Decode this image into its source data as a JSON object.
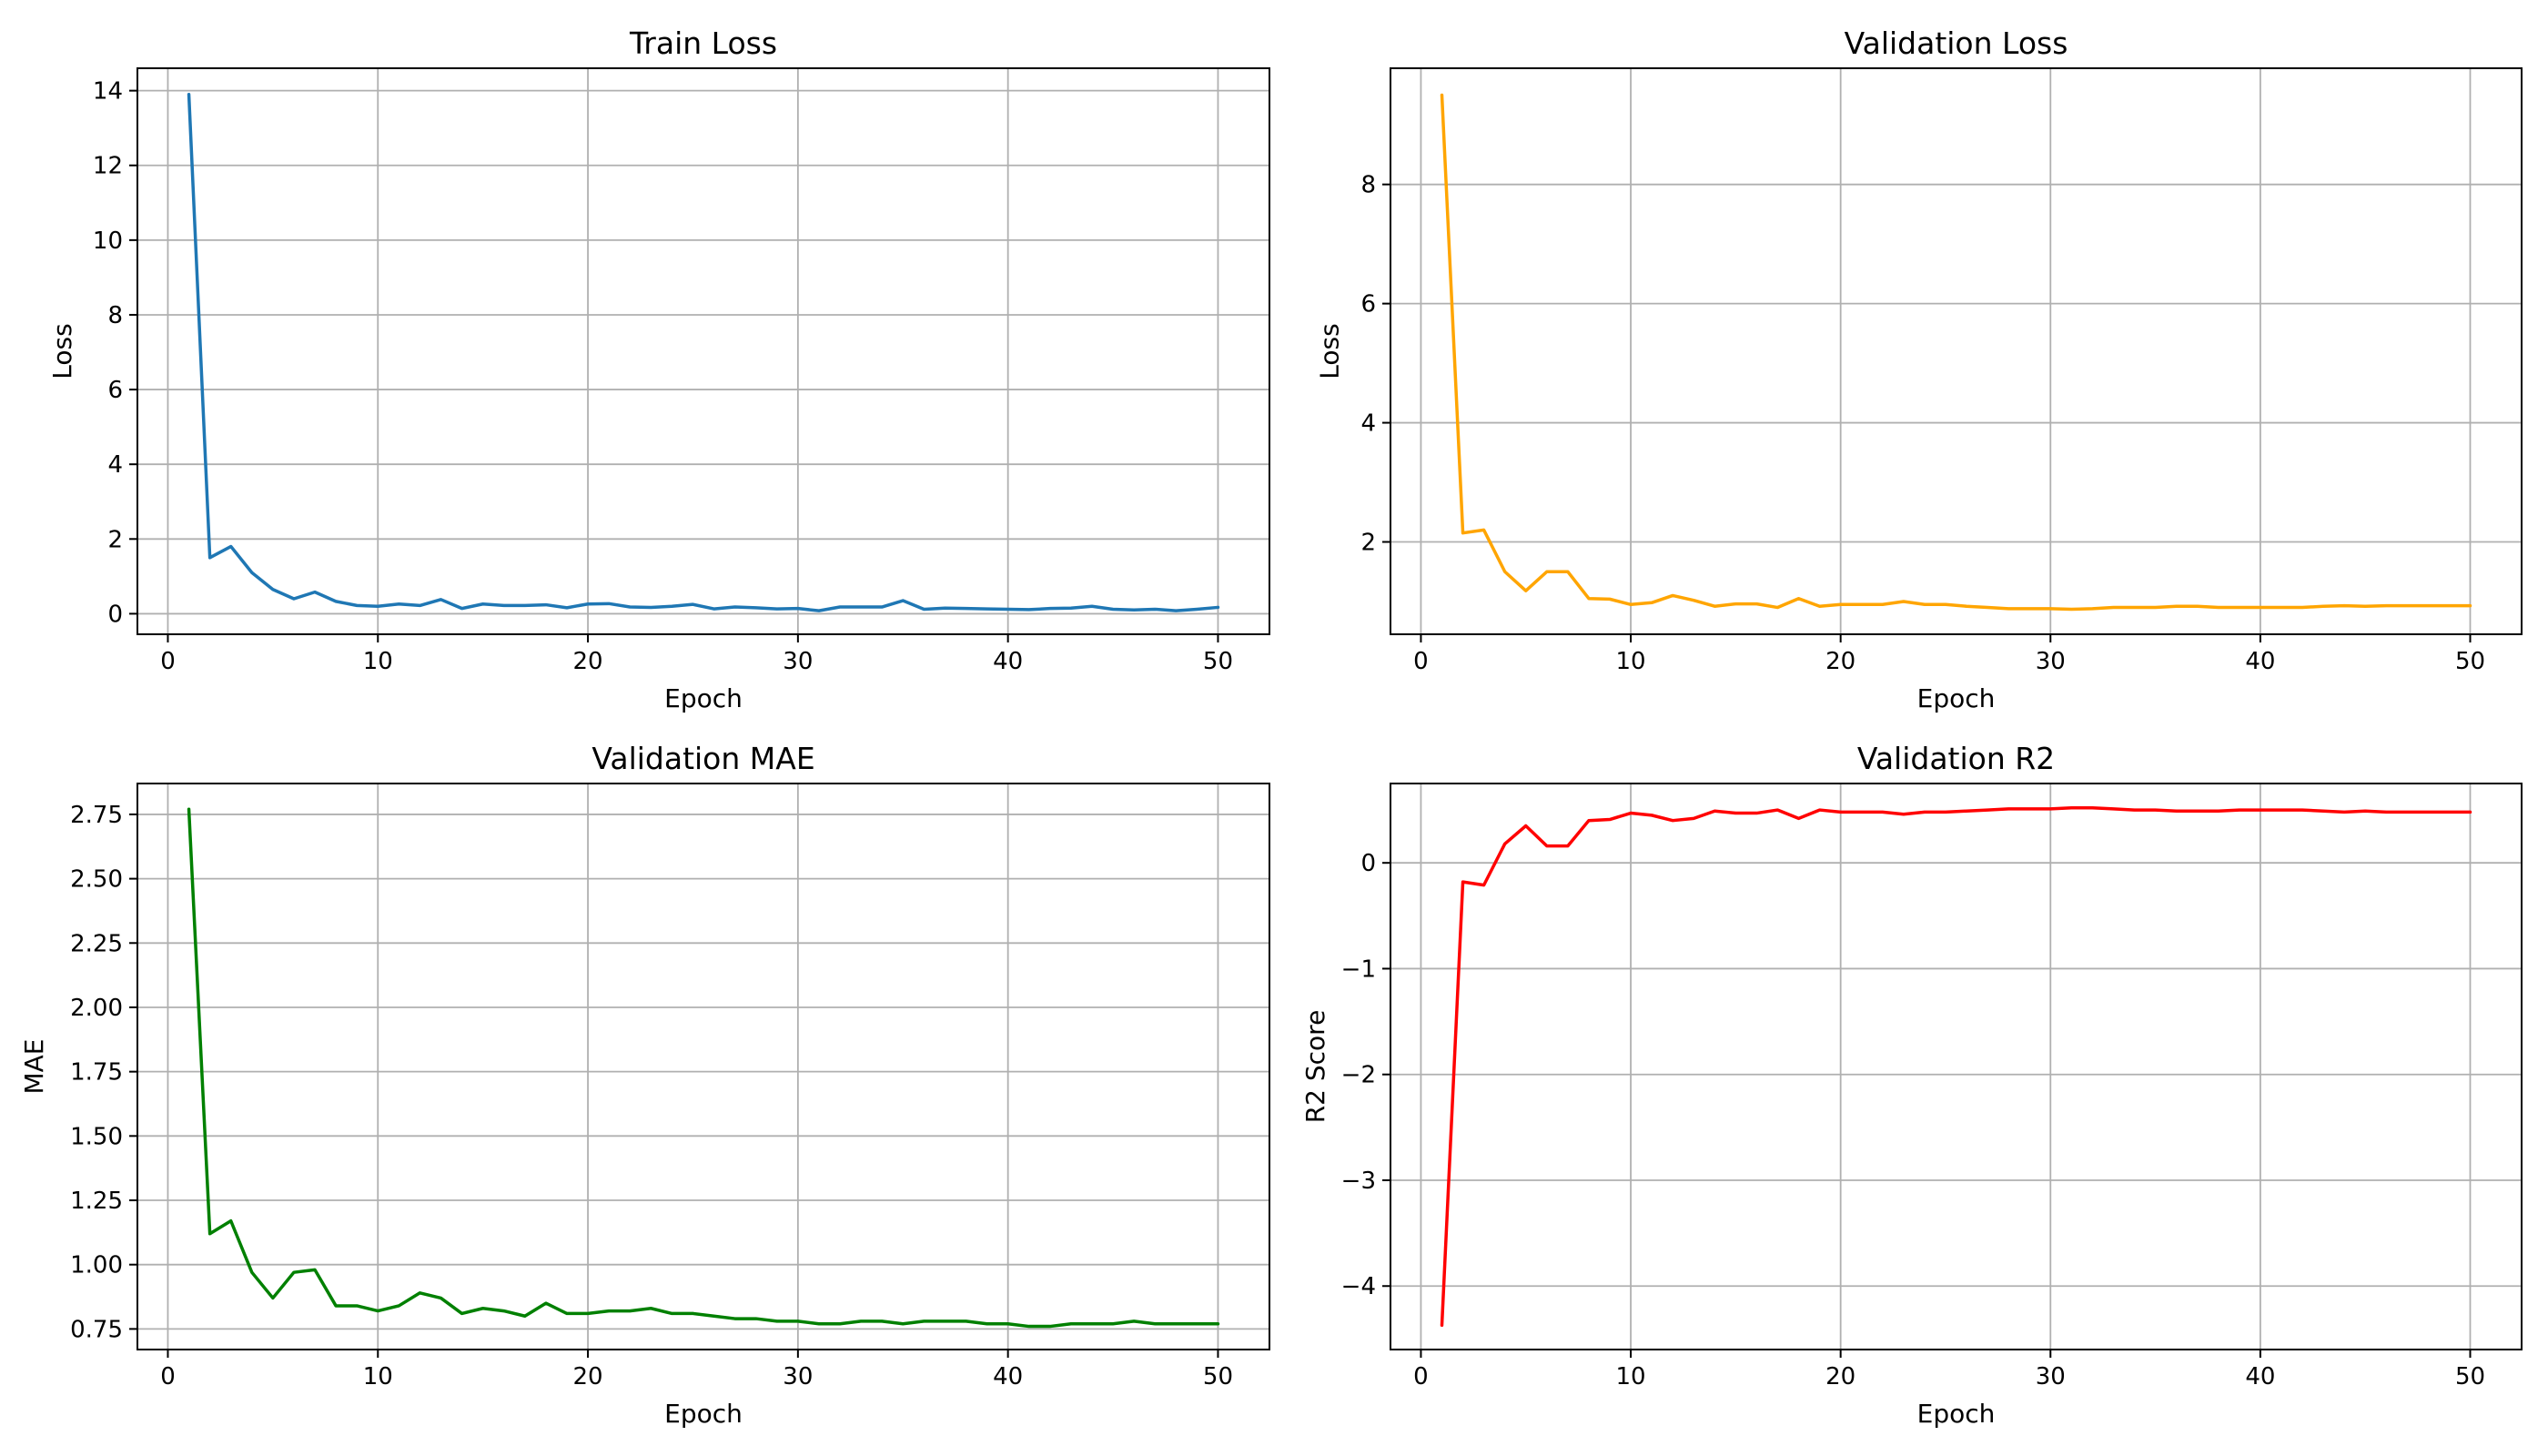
{
  "chart_data": [
    {
      "type": "line",
      "title": "Train Loss",
      "xlabel": "Epoch",
      "ylabel": "Loss",
      "xlim": [
        -1.45,
        52.45
      ],
      "ylim": [
        -0.55,
        14.6
      ],
      "xticks": [
        0,
        10,
        20,
        30,
        40,
        50
      ],
      "yticks": [
        0,
        2,
        4,
        6,
        8,
        10,
        12,
        14
      ],
      "ytick_decimals": 0,
      "grid": true,
      "color": "#1f77b4",
      "series": [
        {
          "x": [
            1,
            2,
            3,
            4,
            5,
            6,
            7,
            8,
            9,
            10,
            11,
            12,
            13,
            14,
            15,
            16,
            17,
            18,
            19,
            20,
            21,
            22,
            23,
            24,
            25,
            26,
            27,
            28,
            29,
            30,
            31,
            32,
            33,
            34,
            35,
            36,
            37,
            38,
            39,
            40,
            41,
            42,
            43,
            44,
            45,
            46,
            47,
            48,
            49,
            50
          ],
          "values": [
            13.9,
            1.5,
            1.8,
            1.1,
            0.65,
            0.4,
            0.58,
            0.33,
            0.22,
            0.2,
            0.26,
            0.22,
            0.38,
            0.14,
            0.26,
            0.22,
            0.22,
            0.24,
            0.16,
            0.26,
            0.27,
            0.18,
            0.17,
            0.2,
            0.25,
            0.13,
            0.18,
            0.16,
            0.13,
            0.14,
            0.08,
            0.18,
            0.18,
            0.18,
            0.35,
            0.12,
            0.15,
            0.14,
            0.13,
            0.12,
            0.11,
            0.14,
            0.15,
            0.2,
            0.12,
            0.1,
            0.12,
            0.08,
            0.12,
            0.17
          ]
        }
      ]
    },
    {
      "type": "line",
      "title": "Validation Loss",
      "xlabel": "Epoch",
      "ylabel": "Loss",
      "xlim": [
        -1.45,
        52.45
      ],
      "ylim": [
        0.45,
        9.95
      ],
      "xticks": [
        0,
        10,
        20,
        30,
        40,
        50
      ],
      "yticks": [
        2,
        4,
        6,
        8
      ],
      "ytick_decimals": 0,
      "grid": true,
      "color": "#ffa500",
      "series": [
        {
          "x": [
            1,
            2,
            3,
            4,
            5,
            6,
            7,
            8,
            9,
            10,
            11,
            12,
            13,
            14,
            15,
            16,
            17,
            18,
            19,
            20,
            21,
            22,
            23,
            24,
            25,
            26,
            27,
            28,
            29,
            30,
            31,
            32,
            33,
            34,
            35,
            36,
            37,
            38,
            39,
            40,
            41,
            42,
            43,
            44,
            45,
            46,
            47,
            48,
            49,
            50
          ],
          "values": [
            9.5,
            2.15,
            2.2,
            1.5,
            1.18,
            1.5,
            1.5,
            1.05,
            1.04,
            0.95,
            0.98,
            1.1,
            1.02,
            0.92,
            0.96,
            0.96,
            0.9,
            1.05,
            0.92,
            0.95,
            0.95,
            0.95,
            1.0,
            0.95,
            0.95,
            0.92,
            0.9,
            0.88,
            0.88,
            0.88,
            0.87,
            0.88,
            0.9,
            0.9,
            0.9,
            0.92,
            0.92,
            0.9,
            0.9,
            0.9,
            0.9,
            0.9,
            0.92,
            0.93,
            0.92,
            0.93,
            0.93,
            0.93,
            0.93,
            0.93
          ]
        }
      ]
    },
    {
      "type": "line",
      "title": "Validation MAE",
      "xlabel": "Epoch",
      "ylabel": "MAE",
      "xlim": [
        -1.45,
        52.45
      ],
      "ylim": [
        0.67,
        2.87
      ],
      "xticks": [
        0,
        10,
        20,
        30,
        40,
        50
      ],
      "yticks": [
        0.75,
        1.0,
        1.25,
        1.5,
        1.75,
        2.0,
        2.25,
        2.5,
        2.75
      ],
      "ytick_decimals": 2,
      "grid": true,
      "color": "#008000",
      "series": [
        {
          "x": [
            1,
            2,
            3,
            4,
            5,
            6,
            7,
            8,
            9,
            10,
            11,
            12,
            13,
            14,
            15,
            16,
            17,
            18,
            19,
            20,
            21,
            22,
            23,
            24,
            25,
            26,
            27,
            28,
            29,
            30,
            31,
            32,
            33,
            34,
            35,
            36,
            37,
            38,
            39,
            40,
            41,
            42,
            43,
            44,
            45,
            46,
            47,
            48,
            49,
            50
          ],
          "values": [
            2.77,
            1.12,
            1.17,
            0.97,
            0.87,
            0.97,
            0.98,
            0.84,
            0.84,
            0.82,
            0.84,
            0.89,
            0.87,
            0.81,
            0.83,
            0.82,
            0.8,
            0.85,
            0.81,
            0.81,
            0.82,
            0.82,
            0.83,
            0.81,
            0.81,
            0.8,
            0.79,
            0.79,
            0.78,
            0.78,
            0.77,
            0.77,
            0.78,
            0.78,
            0.77,
            0.78,
            0.78,
            0.78,
            0.77,
            0.77,
            0.76,
            0.76,
            0.77,
            0.77,
            0.77,
            0.78,
            0.77,
            0.77,
            0.77,
            0.77
          ]
        }
      ]
    },
    {
      "type": "line",
      "title": "Validation R2",
      "xlabel": "Epoch",
      "ylabel": "R2 Score",
      "xlim": [
        -1.45,
        52.45
      ],
      "ylim": [
        -4.6,
        0.75
      ],
      "xticks": [
        0,
        10,
        20,
        30,
        40,
        50
      ],
      "yticks": [
        -4,
        -3,
        -2,
        -1,
        0
      ],
      "ytick_decimals": 0,
      "grid": true,
      "color": "#ff0000",
      "series": [
        {
          "x": [
            1,
            2,
            3,
            4,
            5,
            6,
            7,
            8,
            9,
            10,
            11,
            12,
            13,
            14,
            15,
            16,
            17,
            18,
            19,
            20,
            21,
            22,
            23,
            24,
            25,
            26,
            27,
            28,
            29,
            30,
            31,
            32,
            33,
            34,
            35,
            36,
            37,
            38,
            39,
            40,
            41,
            42,
            43,
            44,
            45,
            46,
            47,
            48,
            49,
            50
          ],
          "values": [
            -4.37,
            -0.18,
            -0.21,
            0.18,
            0.35,
            0.16,
            0.16,
            0.4,
            0.41,
            0.47,
            0.45,
            0.4,
            0.42,
            0.49,
            0.47,
            0.47,
            0.5,
            0.42,
            0.5,
            0.48,
            0.48,
            0.48,
            0.46,
            0.48,
            0.48,
            0.49,
            0.5,
            0.51,
            0.51,
            0.51,
            0.52,
            0.52,
            0.51,
            0.5,
            0.5,
            0.49,
            0.49,
            0.49,
            0.5,
            0.5,
            0.5,
            0.5,
            0.49,
            0.48,
            0.49,
            0.48,
            0.48,
            0.48,
            0.48,
            0.48
          ]
        }
      ]
    }
  ]
}
